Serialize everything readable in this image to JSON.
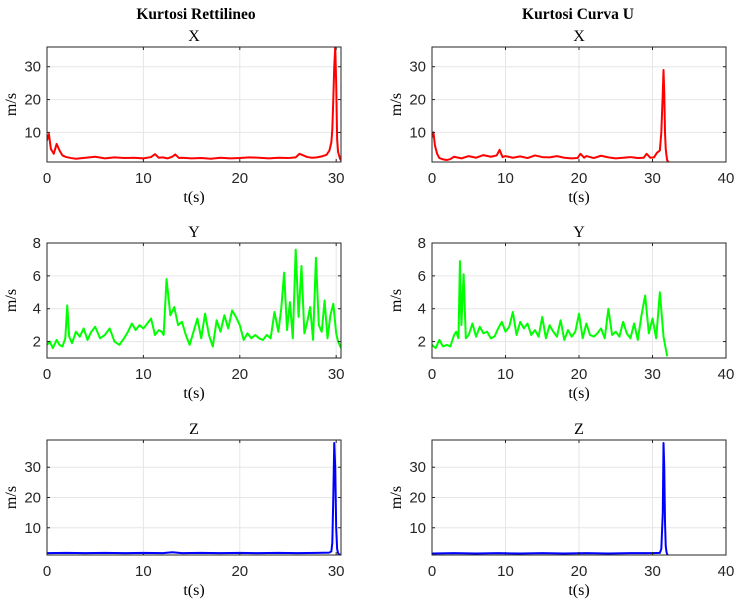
{
  "column_titles": [
    "Kurtosi Rettilineo",
    "Kurtosi Curva U"
  ],
  "colors": {
    "x": "#ff0000",
    "y": "#00ff00",
    "z": "#0000ff",
    "grid": "#e6e6e6",
    "axis": "#262626"
  },
  "chart_data": [
    {
      "type": "line",
      "title": "X",
      "xlabel": "t(s)",
      "ylabel": "m/s",
      "xlim": [
        0,
        30.5
      ],
      "ylim": [
        1,
        36
      ],
      "xticks": [
        0,
        10,
        20,
        30
      ],
      "yticks": [
        10,
        20,
        30
      ],
      "grid": true,
      "color": "#ff0000",
      "series": [
        {
          "x": [
            0,
            0.2,
            0.4,
            0.7,
            1,
            1.3,
            1.6,
            2,
            2.5,
            3,
            4,
            5,
            6,
            7,
            8,
            9,
            10,
            10.8,
            11.2,
            11.6,
            12,
            12.5,
            13,
            13.3,
            13.7,
            14,
            15,
            16,
            17,
            18,
            19,
            20,
            21,
            22,
            23,
            24,
            25,
            25.8,
            26.2,
            26.6,
            27,
            27.5,
            28,
            28.5,
            29,
            29.3,
            29.5,
            29.6,
            29.7,
            29.8,
            29.9,
            30,
            30.1,
            30.2,
            30.4,
            30.5
          ],
          "y": [
            7.5,
            9.5,
            5,
            3.5,
            6.5,
            4.5,
            3,
            2.5,
            2.2,
            2,
            2.3,
            2.6,
            2.1,
            2.4,
            2.2,
            2.3,
            2.1,
            2.5,
            3.4,
            2.3,
            2.4,
            2.1,
            2.6,
            3.3,
            2.2,
            2.3,
            2.1,
            2.2,
            2,
            2.3,
            2.1,
            2.2,
            2.4,
            2.3,
            2.1,
            2.3,
            2.2,
            2.4,
            3.5,
            3,
            2.5,
            2.3,
            2.4,
            2.7,
            3.2,
            4.5,
            7,
            11,
            20,
            30,
            36,
            25,
            8,
            4,
            2,
            1.5
          ]
        }
      ]
    },
    {
      "type": "line",
      "title": "X",
      "xlabel": "t(s)",
      "ylabel": "m/s",
      "xlim": [
        0,
        40
      ],
      "ylim": [
        1,
        36
      ],
      "xticks": [
        0,
        10,
        20,
        30,
        40
      ],
      "yticks": [
        10,
        20,
        30
      ],
      "grid": true,
      "color": "#ff0000",
      "series": [
        {
          "x": [
            0,
            0.2,
            0.4,
            0.7,
            1,
            1.5,
            2,
            2.5,
            3,
            4,
            5,
            6,
            7,
            8,
            8.8,
            9.2,
            9.6,
            10,
            11,
            12,
            13,
            14,
            15,
            16,
            17,
            18,
            19,
            19.8,
            20.2,
            20.7,
            21,
            22,
            23,
            24,
            25,
            26,
            27,
            28,
            28.8,
            29.2,
            29.7,
            30.2,
            30.6,
            31,
            31.2,
            31.4,
            31.5,
            31.6,
            31.7,
            31.8,
            31.9,
            32,
            32.1,
            32.2
          ],
          "y": [
            8.5,
            10,
            6,
            3.5,
            2.2,
            1.8,
            1.6,
            1.9,
            2.6,
            2.1,
            2.8,
            2.3,
            3.1,
            2.6,
            3,
            4.7,
            2.5,
            2.8,
            2.3,
            2.7,
            2.2,
            3,
            2.5,
            2.4,
            2.8,
            2.3,
            2.1,
            2.2,
            3.5,
            2.3,
            2.8,
            2.2,
            2.9,
            2.4,
            2.1,
            2.3,
            2.5,
            2.2,
            2.3,
            3.5,
            2.3,
            2.4,
            3.8,
            4.5,
            10,
            22,
            29,
            22,
            10,
            5,
            3,
            1.5,
            1.2,
            1
          ]
        }
      ]
    },
    {
      "type": "line",
      "title": "Y",
      "xlabel": "t(s)",
      "ylabel": "m/s",
      "xlim": [
        0,
        30.5
      ],
      "ylim": [
        1,
        8
      ],
      "xticks": [
        0,
        10,
        20,
        30
      ],
      "yticks": [
        2,
        4,
        6,
        8
      ],
      "grid": true,
      "color": "#00ff00",
      "series": [
        {
          "x": [
            0,
            0.3,
            0.6,
            1,
            1.3,
            1.6,
            1.9,
            2.1,
            2.3,
            2.6,
            3,
            3.4,
            3.8,
            4.2,
            4.6,
            5,
            5.5,
            6,
            6.5,
            7,
            7.5,
            8,
            8.4,
            8.8,
            9.2,
            9.6,
            10,
            10.4,
            10.8,
            11.2,
            11.6,
            11.9,
            12.1,
            12.4,
            12.8,
            13.2,
            13.6,
            14,
            14.4,
            14.8,
            15.2,
            15.6,
            16,
            16.4,
            16.8,
            17.2,
            17.6,
            18,
            18.4,
            18.8,
            19.2,
            19.6,
            20,
            20.4,
            20.8,
            21.2,
            21.6,
            22,
            22.4,
            22.8,
            23.2,
            23.6,
            24,
            24.3,
            24.6,
            24.9,
            25.2,
            25.5,
            25.8,
            26.1,
            26.4,
            26.7,
            27,
            27.3,
            27.6,
            27.9,
            28.2,
            28.5,
            28.8,
            29.1,
            29.4,
            29.7,
            30,
            30.2,
            30.5
          ],
          "y": [
            1.8,
            2,
            1.6,
            2.1,
            1.8,
            1.7,
            2.2,
            4.2,
            2.3,
            1.9,
            2.6,
            2.3,
            2.8,
            2.1,
            2.6,
            2.9,
            2.2,
            2.4,
            2.8,
            2,
            1.8,
            2.2,
            2.6,
            3.1,
            2.7,
            3,
            2.8,
            3.1,
            3.4,
            2.4,
            2.7,
            2.6,
            2.4,
            5.8,
            3.6,
            4.1,
            3,
            3.2,
            2.4,
            1.8,
            2.6,
            3.4,
            2.2,
            3.7,
            2.4,
            1.7,
            3.3,
            2.6,
            3.6,
            2.8,
            3.9,
            3.5,
            3,
            2.1,
            2.5,
            2.2,
            2.4,
            2.2,
            2.1,
            2.4,
            2.2,
            3.8,
            2.6,
            4,
            6.2,
            2.7,
            4.4,
            2.2,
            7.6,
            3.5,
            6.6,
            2.5,
            3.2,
            4.1,
            2.1,
            7.1,
            3,
            2.6,
            4.5,
            2.2,
            3.6,
            4.3,
            2.5,
            2,
            1.6
          ]
        }
      ]
    },
    {
      "type": "line",
      "title": "Y",
      "xlabel": "t(s)",
      "ylabel": "m/s",
      "xlim": [
        0,
        40
      ],
      "ylim": [
        1,
        8
      ],
      "xticks": [
        0,
        10,
        20,
        30,
        40
      ],
      "yticks": [
        2,
        4,
        6,
        8
      ],
      "grid": true,
      "color": "#00ff00",
      "series": [
        {
          "x": [
            0,
            0.5,
            1,
            1.5,
            2,
            2.5,
            3,
            3.3,
            3.6,
            3.8,
            4,
            4.3,
            4.6,
            5,
            5.5,
            6,
            6.5,
            7,
            7.5,
            8,
            8.5,
            9,
            9.5,
            10,
            10.5,
            11,
            11.5,
            12,
            12.5,
            13,
            13.5,
            14,
            14.5,
            15,
            15.5,
            16,
            16.5,
            17,
            17.5,
            18,
            18.5,
            19,
            19.5,
            20,
            20.5,
            21,
            21.5,
            22,
            22.5,
            23,
            23.5,
            24,
            24.5,
            25,
            25.5,
            26,
            26.5,
            27,
            27.5,
            28,
            28.5,
            29,
            29.5,
            30,
            30.5,
            31,
            31.5,
            32
          ],
          "y": [
            1.8,
            1.6,
            2.1,
            1.7,
            1.8,
            1.7,
            2.4,
            2.6,
            2.2,
            6.9,
            3,
            6.1,
            2.2,
            2.4,
            3.1,
            2.3,
            2.9,
            2.5,
            2.6,
            2.2,
            2.3,
            2.8,
            3.2,
            2.6,
            2.9,
            3.8,
            2.4,
            3.2,
            2.8,
            3.1,
            2.4,
            2.7,
            2.3,
            3.5,
            2.2,
            3,
            2.6,
            2.3,
            3.3,
            2.1,
            2.7,
            2.3,
            2.6,
            3.7,
            2.2,
            3.1,
            2.4,
            2.3,
            2.5,
            2.8,
            2.2,
            4,
            2.4,
            2.6,
            2.3,
            3.2,
            2.5,
            2.2,
            3.1,
            2.1,
            3.6,
            4.8,
            2.5,
            3.4,
            2.2,
            5,
            2.3,
            1.1
          ]
        }
      ]
    },
    {
      "type": "line",
      "title": "Z",
      "xlabel": "t(s)",
      "ylabel": "m/s",
      "xlim": [
        0,
        30.5
      ],
      "ylim": [
        1,
        39
      ],
      "xticks": [
        0,
        10,
        20,
        30
      ],
      "yticks": [
        10,
        20,
        30
      ],
      "grid": true,
      "color": "#0000ff",
      "series": [
        {
          "x": [
            0,
            2,
            4,
            6,
            8,
            10,
            12,
            13,
            14,
            16,
            18,
            20,
            22,
            24,
            26,
            28,
            29.3,
            29.5,
            29.6,
            29.7,
            29.8,
            29.9,
            30,
            30.1,
            30.2,
            30.3,
            30.5
          ],
          "y": [
            1.6,
            1.7,
            1.6,
            1.7,
            1.6,
            1.7,
            1.6,
            1.9,
            1.6,
            1.7,
            1.6,
            1.7,
            1.6,
            1.7,
            1.6,
            1.7,
            1.8,
            2.2,
            5,
            20,
            38,
            30,
            10,
            3,
            1.6,
            1.2,
            1
          ]
        }
      ]
    },
    {
      "type": "line",
      "title": "Z",
      "xlabel": "t(s)",
      "ylabel": "m/s",
      "xlim": [
        0,
        40
      ],
      "ylim": [
        1,
        39
      ],
      "xticks": [
        0,
        10,
        20,
        30,
        40
      ],
      "yticks": [
        10,
        20,
        30
      ],
      "grid": true,
      "color": "#0000ff",
      "series": [
        {
          "x": [
            0,
            3,
            6,
            9,
            12,
            15,
            18,
            21,
            24,
            27,
            30,
            31,
            31.2,
            31.4,
            31.5,
            31.6,
            31.7,
            31.8,
            31.9,
            32,
            32.1
          ],
          "y": [
            1.5,
            1.6,
            1.5,
            1.6,
            1.5,
            1.6,
            1.5,
            1.6,
            1.5,
            1.6,
            1.6,
            1.7,
            3,
            15,
            38,
            30,
            12,
            4,
            2,
            1.2,
            1
          ]
        }
      ]
    }
  ]
}
